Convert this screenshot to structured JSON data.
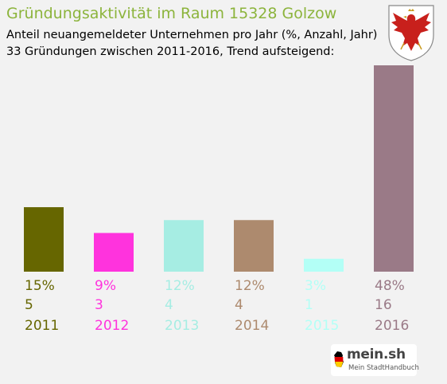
{
  "title": "Gründungsaktivität im Raum 15328 Golzow",
  "subtitle_line1": "Anteil neuangemeldeter Unternehmen pro Jahr (%, Anzahl, Jahr)",
  "subtitle_line2": "33 Gründungen zwischen 2011-2016, Trend aufsteigend:",
  "crest_icon": "brandenburg-eagle-crest",
  "logo": {
    "name": "mein.sh",
    "tagline": "Mein StadtHandbuch"
  },
  "colors": {
    "title": "#8cb43c",
    "background": "#f2f2f2"
  },
  "chart_data": {
    "type": "bar",
    "categories": [
      "2011",
      "2012",
      "2013",
      "2014",
      "2015",
      "2016"
    ],
    "values": [
      15,
      9,
      12,
      12,
      3,
      48
    ],
    "counts": [
      5,
      3,
      4,
      4,
      1,
      16
    ],
    "percent_labels": [
      "15%",
      "9%",
      "12%",
      "12%",
      "3%",
      "48%"
    ],
    "count_labels": [
      "5",
      "3",
      "4",
      "4",
      "1",
      "16"
    ],
    "colors": [
      "#666600",
      "#ff33dd",
      "#a6ede3",
      "#ad8a6e",
      "#b3fff6",
      "#9a7a87"
    ],
    "ylim": [
      0,
      48
    ],
    "grid": false,
    "legend": "none"
  }
}
